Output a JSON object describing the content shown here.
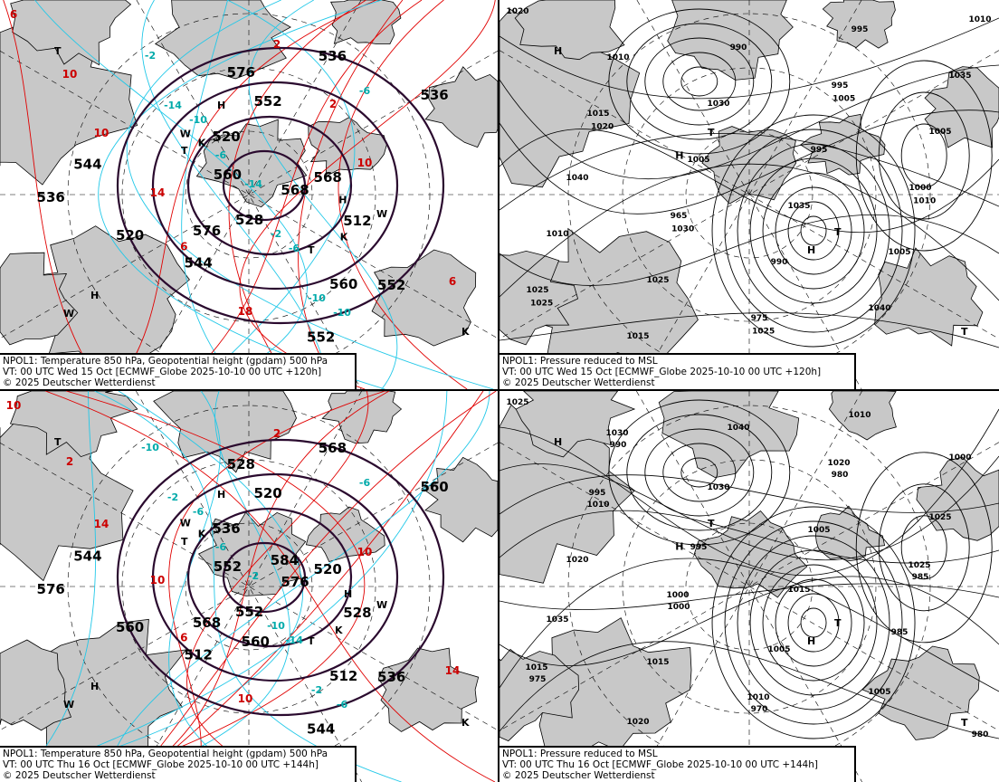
{
  "panels": [
    {
      "id": "t850-z500-120h",
      "caption": {
        "line1": "NPOL1: Temperature 850 hPa, Geopotential height (gpdam) 500 hPa",
        "line2": "VT: 00 UTC Wed  15 Oct [ECMWF_Globe 2025-10-10 00 UTC +120h]",
        "line3": "© 2025 Deutscher Wetterdienst"
      },
      "height_labels": [
        "568",
        "576",
        "552",
        "560",
        "544",
        "536",
        "528",
        "520",
        "512",
        "520",
        "536",
        "552",
        "560",
        "568",
        "544",
        "576",
        "552",
        "536"
      ],
      "temp_labels_red": [
        "6",
        "10",
        "6",
        "2",
        "10",
        "6",
        "10",
        "14",
        "18",
        "2"
      ],
      "temp_labels_cyan": [
        "-2",
        "-10",
        "-14",
        "-6",
        "-10",
        "-14",
        "-6",
        "-2",
        "-10",
        "-6"
      ],
      "marks": [
        "T",
        "K",
        "W",
        "H"
      ]
    },
    {
      "id": "mslp-120h",
      "caption": {
        "line1": "NPOL1: Pressure reduced to MSL",
        "line2": "VT: 00 UTC Wed  15 Oct [ECMWF_Globe 2025-10-10 00 UTC +120h]",
        "line3": "© 2025 Deutscher Wetterdienst"
      },
      "pressure_labels": [
        "1020",
        "1015",
        "965",
        "975",
        "995",
        "1000",
        "1025",
        "1010",
        "1005",
        "990",
        "995",
        "1005",
        "1010",
        "1015",
        "1030",
        "1035",
        "1040",
        "1035",
        "1040",
        "1025",
        "990",
        "995",
        "1005",
        "1010",
        "1020",
        "1030",
        "1025",
        "1005",
        "1010",
        "1025"
      ],
      "marks": [
        "H",
        "T"
      ]
    },
    {
      "id": "t850-z500-144h",
      "caption": {
        "line1": "NPOL1: Temperature 850 hPa, Geopotential height (gpdam) 500 hPa",
        "line2": "VT: 00 UTC Thu  16 Oct [ECMWF_Globe 2025-10-10 00 UTC +144h]",
        "line3": "© 2025 Deutscher Wetterdienst"
      },
      "height_labels": [
        "576",
        "568",
        "520",
        "512",
        "544",
        "560",
        "552",
        "536",
        "528",
        "560",
        "568",
        "544",
        "552",
        "520",
        "512",
        "528",
        "536",
        "576",
        "584",
        "560"
      ],
      "temp_labels_red": [
        "10",
        "14",
        "6",
        "2",
        "10",
        "14",
        "2",
        "10",
        "10"
      ],
      "temp_labels_cyan": [
        "-10",
        "-6",
        "-2",
        "-14",
        "-6",
        "-2",
        "-6",
        "-10",
        "-2",
        "-6"
      ],
      "marks": [
        "T",
        "K",
        "W",
        "H"
      ]
    },
    {
      "id": "mslp-144h",
      "caption": {
        "line1": "NPOL1: Pressure reduced to MSL",
        "line2": "VT: 00 UTC Thu  16 Oct [ECMWF_Globe 2025-10-10 00 UTC +144h]",
        "line3": "© 2025 Deutscher Wetterdienst"
      },
      "pressure_labels": [
        "1025",
        "1010",
        "1000",
        "970",
        "980",
        "985",
        "975",
        "990",
        "995",
        "1005",
        "1010",
        "1025",
        "1035",
        "1020",
        "1030",
        "1015",
        "1005",
        "1000",
        "1020",
        "1015",
        "1040",
        "1005",
        "985",
        "980",
        "995",
        "1000",
        "1010",
        "1020",
        "1025",
        "1015",
        "1030"
      ],
      "marks": [
        "H",
        "T"
      ]
    }
  ],
  "colors": {
    "land": "#c8c8c8",
    "height_contour": "#2a0a2e",
    "temp_warm": "#e00000",
    "temp_cold": "#22c8e8",
    "isobar": "#000000"
  }
}
